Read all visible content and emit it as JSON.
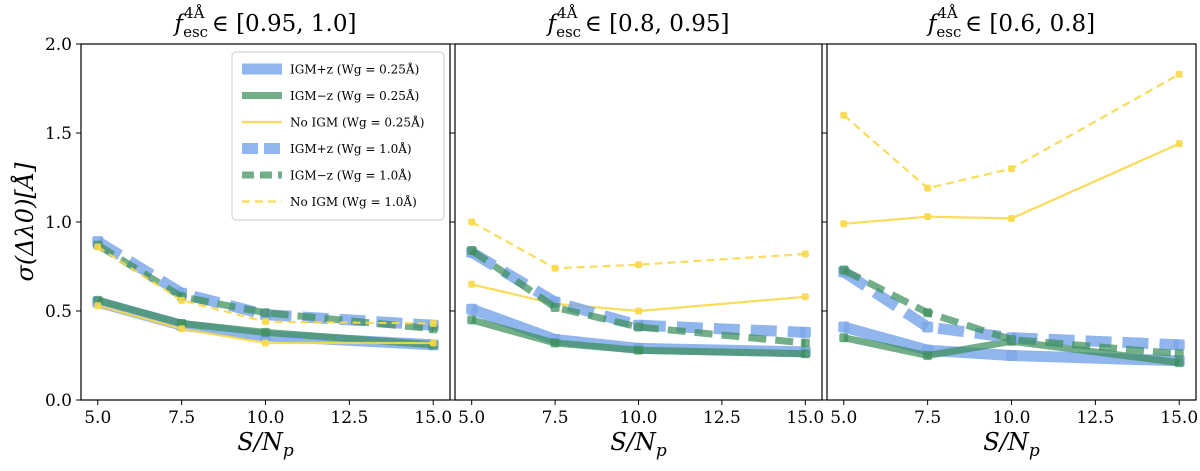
{
  "chart_data": {
    "type": "line",
    "ylabel": "σ(Δλ0)[Å]",
    "y_ticks": [
      "0.0",
      "0.5",
      "1.0",
      "1.5",
      "2.0"
    ],
    "x_ticks": [
      "5.0",
      "7.5",
      "10.0",
      "12.5",
      "15.0"
    ],
    "xlim": [
      4.5,
      15.5
    ],
    "ylim": [
      0,
      2.0
    ],
    "colors": {
      "blue": "#7ea8ea",
      "green": "#3c8f5a",
      "yellow": "#f9d848"
    },
    "legend": {
      "position": "upper-right of first panel",
      "entries": [
        "IGM+z (Wg = 0.25Å)",
        "IGM−z (Wg = 0.25Å)",
        "No IGM  (Wg = 0.25Å)",
        "IGM+z (Wg = 1.0Å)",
        "IGM−z (Wg = 1.0Å)",
        "No IGM  (Wg = 1.0Å)"
      ]
    },
    "panels": [
      {
        "title": "f_esc^4Å ∈ [0.95, 1.0]",
        "xlabel": "S/N_p",
        "x": [
          5.0,
          7.5,
          10.0,
          15.0
        ],
        "series": [
          {
            "name": "IGM+z (Wg = 0.25Å)",
            "values": [
              0.55,
              0.42,
              0.36,
              0.31
            ]
          },
          {
            "name": "IGM−z (Wg = 0.25Å)",
            "values": [
              0.56,
              0.43,
              0.38,
              0.31
            ]
          },
          {
            "name": "No IGM  (Wg = 0.25Å)",
            "values": [
              0.53,
              0.4,
              0.32,
              0.32
            ]
          },
          {
            "name": "IGM+z (Wg = 1.0Å)",
            "values": [
              0.89,
              0.6,
              0.48,
              0.42
            ]
          },
          {
            "name": "IGM−z (Wg = 1.0Å)",
            "values": [
              0.87,
              0.58,
              0.49,
              0.4
            ]
          },
          {
            "name": "No IGM  (Wg = 1.0Å)",
            "values": [
              0.86,
              0.56,
              0.44,
              0.43
            ]
          }
        ]
      },
      {
        "title": "f_esc^4Å ∈ [0.8, 0.95]",
        "xlabel": "S/N_p",
        "x": [
          5.0,
          7.5,
          10.0,
          15.0
        ],
        "series": [
          {
            "name": "IGM+z (Wg = 0.25Å)",
            "values": [
              0.51,
              0.34,
              0.29,
              0.27
            ]
          },
          {
            "name": "IGM−z (Wg = 0.25Å)",
            "values": [
              0.45,
              0.32,
              0.28,
              0.26
            ]
          },
          {
            "name": "No IGM  (Wg = 0.25Å)",
            "values": [
              0.65,
              0.54,
              0.5,
              0.58
            ]
          },
          {
            "name": "IGM+z (Wg = 1.0Å)",
            "values": [
              0.83,
              0.55,
              0.42,
              0.38
            ]
          },
          {
            "name": "IGM−z (Wg = 1.0Å)",
            "values": [
              0.84,
              0.52,
              0.41,
              0.32
            ]
          },
          {
            "name": "No IGM  (Wg = 1.0Å)",
            "values": [
              1.0,
              0.74,
              0.76,
              0.82
            ]
          }
        ]
      },
      {
        "title": "f_esc^4Å ∈ [0.6, 0.8]",
        "xlabel": "S/N_p",
        "x": [
          5.0,
          7.5,
          10.0,
          15.0
        ],
        "series": [
          {
            "name": "IGM+z (Wg = 0.25Å)",
            "values": [
              0.41,
              0.28,
              0.25,
              0.22
            ]
          },
          {
            "name": "IGM−z (Wg = 0.25Å)",
            "values": [
              0.35,
              0.25,
              0.33,
              0.21
            ]
          },
          {
            "name": "No IGM  (Wg = 0.25Å)",
            "values": [
              0.99,
              1.03,
              1.02,
              1.44
            ]
          },
          {
            "name": "IGM+z (Wg = 1.0Å)",
            "values": [
              0.72,
              0.41,
              0.35,
              0.31
            ]
          },
          {
            "name": "IGM−z (Wg = 1.0Å)",
            "values": [
              0.73,
              0.49,
              0.34,
              0.26
            ]
          },
          {
            "name": "No IGM  (Wg = 1.0Å)",
            "values": [
              1.6,
              1.19,
              1.3,
              1.83
            ]
          }
        ]
      }
    ]
  }
}
